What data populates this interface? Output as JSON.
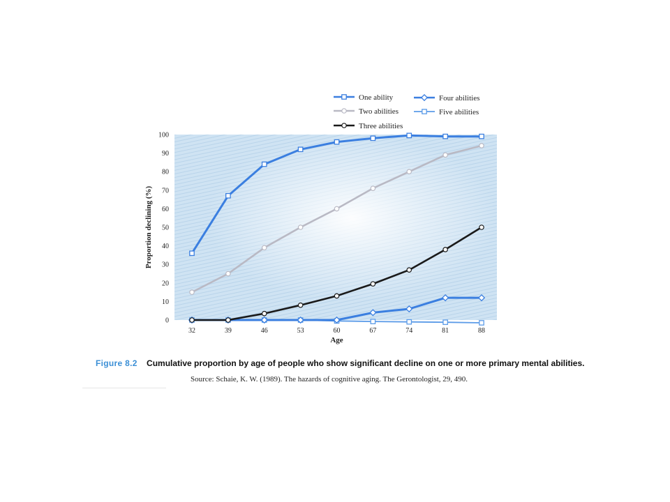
{
  "chart_data": {
    "type": "line",
    "title": "",
    "xlabel": "Age",
    "ylabel": "Proportion declining (%)",
    "categories": [
      "32",
      "39",
      "46",
      "53",
      "60",
      "67",
      "74",
      "81",
      "88"
    ],
    "ylim": [
      0,
      100
    ],
    "yticks": [
      "0",
      "10",
      "20",
      "30",
      "40",
      "50",
      "60",
      "70",
      "80",
      "90",
      "100"
    ],
    "legend_position": "top",
    "series": [
      {
        "name": "One ability",
        "values": [
          36,
          67,
          84,
          92,
          96,
          98,
          99.5,
          99,
          99
        ],
        "color": "#3b7fe0",
        "marker": "square"
      },
      {
        "name": "Two abilities",
        "values": [
          15,
          25,
          39,
          50,
          60,
          71,
          80,
          89,
          94
        ],
        "color": "#b9b9c4",
        "marker": "circle"
      },
      {
        "name": "Three abilities",
        "values": [
          0,
          0,
          3.5,
          8,
          13,
          19.5,
          27,
          38,
          50
        ],
        "color": "#1a1a1a",
        "marker": "circle"
      },
      {
        "name": "Four abilities",
        "values": [
          0,
          0,
          0,
          0,
          0,
          4,
          6,
          12,
          12
        ],
        "color": "#3b7fe0",
        "marker": "diamond"
      },
      {
        "name": "Five abilities",
        "values": [
          0,
          0,
          0,
          0,
          -0.5,
          -0.8,
          -1,
          -1.2,
          -1.5
        ],
        "color": "#5b9be8",
        "marker": "square"
      }
    ]
  },
  "caption": {
    "figure_label": "Figure 8.2",
    "text": "Cumulative proportion by age of people who show significant decline on one or more primary mental abilities.",
    "source": "Source: Schaie, K. W. (1989). The hazards of cognitive aging. The Gerontologist, 29, 490."
  },
  "colors": {
    "plot_background": "#cfe3f3",
    "hatch": "#b9d4ea",
    "accent": "#3b8fd6"
  }
}
